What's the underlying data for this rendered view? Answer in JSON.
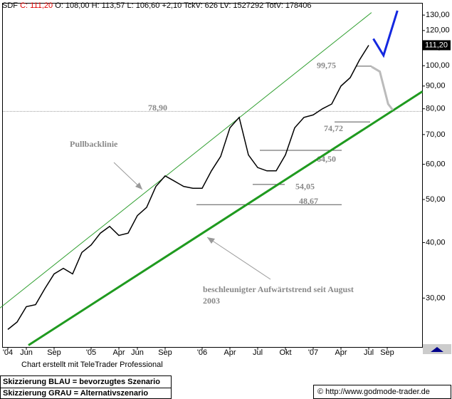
{
  "header": {
    "symbol": "SDF",
    "close": "C: 111,20",
    "details": "O: 108,00 H: 113,57 L: 106,60 +2,10 TckV: 626 LV: 1527292 TotV: 178406"
  },
  "chart_data": {
    "type": "line",
    "log_scale": true,
    "color": "#000000",
    "last_price": {
      "value": 111.2,
      "label": "111,20"
    },
    "categories": [
      "'04",
      null,
      "Jun",
      null,
      null,
      "Sep",
      null,
      null,
      null,
      "'05",
      null,
      null,
      "Apr",
      null,
      "Jun",
      null,
      null,
      "Sep",
      null,
      null,
      null,
      "'06",
      null,
      null,
      "Apr",
      null,
      null,
      "Jul",
      null,
      null,
      "Okt",
      null,
      null,
      "'07",
      null,
      null,
      "Apr",
      null,
      null,
      "Jul",
      null,
      "Sep",
      null,
      null,
      null
    ],
    "values": [
      25.5,
      26.5,
      28.7,
      29,
      31.5,
      34,
      35,
      34,
      38,
      39.5,
      42,
      43.5,
      41.5,
      42,
      46,
      48,
      53.5,
      56.5,
      55,
      53.5,
      53,
      53,
      58,
      62.5,
      72.5,
      76.5,
      63,
      59,
      58,
      58,
      63,
      72.5,
      76.5,
      77.5,
      80,
      82,
      90,
      94,
      103,
      111.2,
      null,
      null,
      null,
      null,
      null
    ],
    "ylim": [
      23.2,
      138.5
    ],
    "yticks": [
      {
        "value": 30,
        "label": "30,00"
      },
      {
        "value": 40,
        "label": "40,00"
      },
      {
        "value": 50,
        "label": "50,00"
      },
      {
        "value": 60,
        "label": "60,00"
      },
      {
        "value": 70,
        "label": "70,00"
      },
      {
        "value": 80,
        "label": "80,00"
      },
      {
        "value": 90,
        "label": "90,00"
      },
      {
        "value": 100,
        "label": "100,00"
      },
      {
        "value": 110,
        "label": "110,00"
      },
      {
        "value": 120,
        "label": "120,00"
      },
      {
        "value": 130,
        "label": "130,00"
      }
    ],
    "trendlines": [
      {
        "color": "#2e9e2e",
        "width": 1,
        "x": [
          -0.85,
          39.3
        ],
        "values": [
          28.5,
          131.7
        ]
      },
      {
        "color": "#1f9a1f",
        "width": 3,
        "x": [
          2.23,
          44.8
        ],
        "values": [
          23.5,
          87.5
        ]
      }
    ],
    "scenarios": [
      {
        "color": "#1428e0",
        "width": 3,
        "x": [
          39.5,
          40.6,
          42.1
        ],
        "values": [
          115,
          105.5,
          133
        ]
      },
      {
        "color": "#bbbbbb",
        "width": 3,
        "x": [
          39.3,
          40.2,
          41.1,
          41.6
        ],
        "values": [
          99.5,
          97,
          82,
          79.5
        ]
      }
    ],
    "levels": [
      {
        "value": 78.9,
        "label": "78,90"
      },
      {
        "value": 99.75,
        "label": "99,75"
      },
      {
        "value": 74.72,
        "label": "74,72"
      },
      {
        "value": 64.5,
        "label": "64,50"
      },
      {
        "value": 54.05,
        "label": "54,05"
      },
      {
        "value": 48.67,
        "label": "48,67"
      }
    ],
    "annotations": [
      "Pullbacklinie",
      "beschleunigter Aufwärtstrend seit August",
      "2003"
    ]
  },
  "footer": {
    "credit": "Chart erstellt mit TeleTrader Professional",
    "legend": [
      "Skizzierung BLAU = bevorzugtes Szenario",
      "Skizzierung GRAU = Alternativszenario"
    ],
    "source": "© http://www.godmode-trader.de"
  }
}
